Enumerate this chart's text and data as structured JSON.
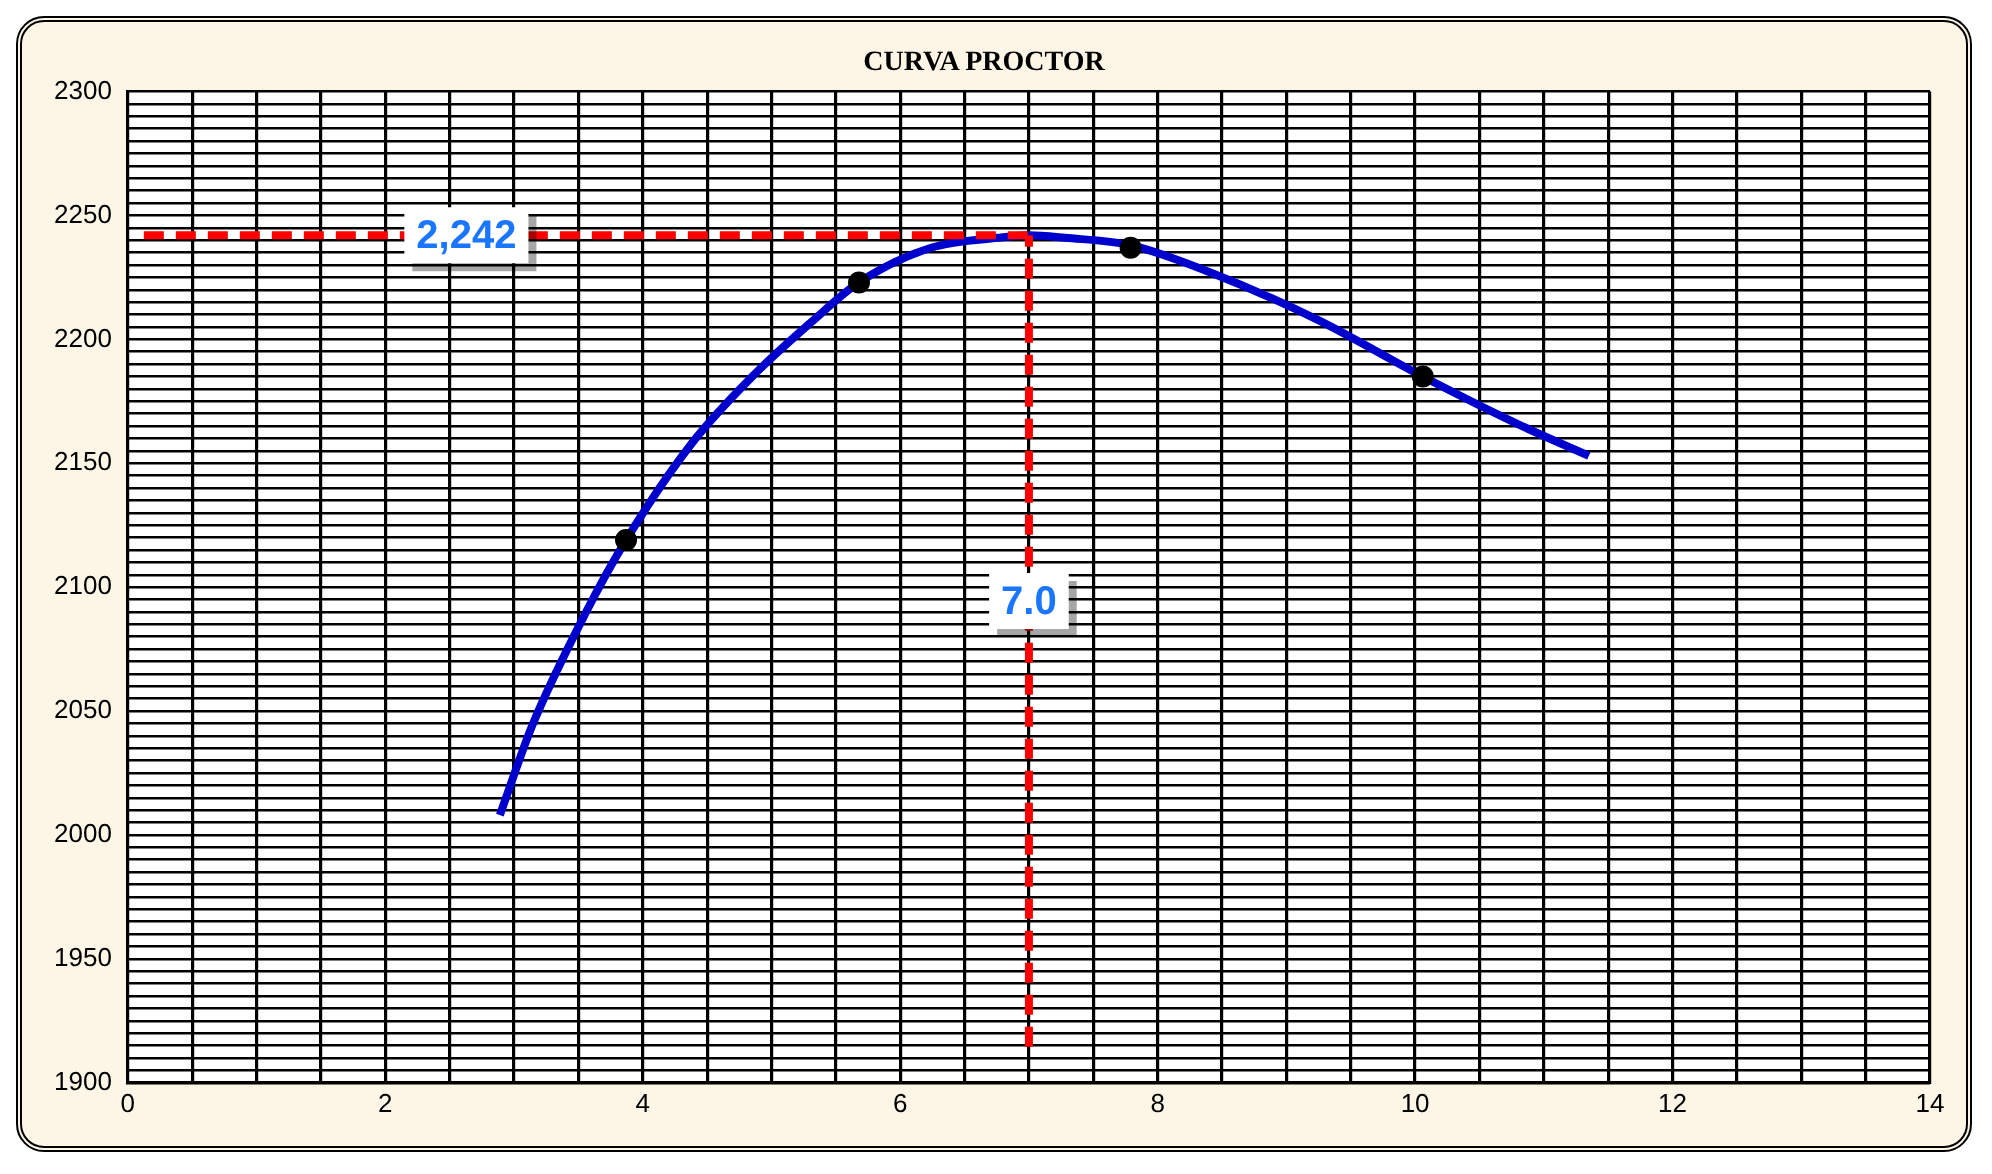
{
  "chart_data": {
    "type": "line",
    "title": "CURVA PROCTOR",
    "series": [
      {
        "type": "line",
        "color": "#0000cc",
        "marker": "none",
        "x": [
          2.89,
          3.14,
          3.56,
          3.87,
          4.38,
          4.85,
          5.31,
          5.68,
          6.24,
          6.76,
          7.0,
          7.28,
          7.79,
          8.41,
          9.24,
          10.06,
          10.79,
          11.35
        ],
        "values": [
          2008,
          2044,
          2090,
          2119,
          2158,
          2185,
          2207,
          2223,
          2237,
          2241,
          2242,
          2241,
          2238,
          2227,
          2208,
          2185,
          2166,
          2153
        ]
      },
      {
        "type": "scatter",
        "color": "#000000",
        "marker": "circle",
        "x": [
          3.87,
          5.68,
          7.79,
          10.06
        ],
        "values": [
          2119,
          2223,
          2237,
          2185
        ]
      }
    ],
    "xlim": [
      0,
      14
    ],
    "xticks": [
      0,
      {
        "value": 0.5,
        "label": null
      },
      {
        "value": 1,
        "label": null
      },
      {
        "value": 1.5,
        "label": null
      },
      2,
      {
        "value": 2.5,
        "label": null
      },
      {
        "value": 3,
        "label": null
      },
      {
        "value": 3.5,
        "label": null
      },
      4,
      {
        "value": 4.5,
        "label": null
      },
      {
        "value": 5,
        "label": null
      },
      {
        "value": 5.5,
        "label": null
      },
      6,
      {
        "value": 6.5,
        "label": null
      },
      {
        "value": 7,
        "label": null
      },
      {
        "value": 7.5,
        "label": null
      },
      8,
      {
        "value": 8.5,
        "label": null
      },
      {
        "value": 9,
        "label": null
      },
      {
        "value": 9.5,
        "label": null
      },
      10,
      {
        "value": 10.5,
        "label": null
      },
      {
        "value": 11,
        "label": null
      },
      {
        "value": 11.5,
        "label": null
      },
      12,
      {
        "value": 12.5,
        "label": null
      },
      {
        "value": 13,
        "label": null
      },
      {
        "value": 13.5,
        "label": null
      },
      14
    ],
    "ylim": [
      1900,
      2300
    ],
    "yticks": [
      1900,
      {
        "value": 1905,
        "label": null
      },
      {
        "value": 1910,
        "label": null
      },
      {
        "value": 1915,
        "label": null
      },
      {
        "value": 1920,
        "label": null
      },
      {
        "value": 1925,
        "label": null
      },
      {
        "value": 1930,
        "label": null
      },
      {
        "value": 1935,
        "label": null
      },
      {
        "value": 1940,
        "label": null
      },
      {
        "value": 1945,
        "label": null
      },
      1950,
      {
        "value": 1955,
        "label": null
      },
      {
        "value": 1960,
        "label": null
      },
      {
        "value": 1965,
        "label": null
      },
      {
        "value": 1970,
        "label": null
      },
      {
        "value": 1975,
        "label": null
      },
      {
        "value": 1980,
        "label": null
      },
      {
        "value": 1985,
        "label": null
      },
      {
        "value": 1990,
        "label": null
      },
      {
        "value": 1995,
        "label": null
      },
      2000,
      {
        "value": 2005,
        "label": null
      },
      {
        "value": 2010,
        "label": null
      },
      {
        "value": 2015,
        "label": null
      },
      {
        "value": 2020,
        "label": null
      },
      {
        "value": 2025,
        "label": null
      },
      {
        "value": 2030,
        "label": null
      },
      {
        "value": 2035,
        "label": null
      },
      {
        "value": 2040,
        "label": null
      },
      {
        "value": 2045,
        "label": null
      },
      2050,
      {
        "value": 2055,
        "label": null
      },
      {
        "value": 2060,
        "label": null
      },
      {
        "value": 2065,
        "label": null
      },
      {
        "value": 2070,
        "label": null
      },
      {
        "value": 2075,
        "label": null
      },
      {
        "value": 2080,
        "label": null
      },
      {
        "value": 2085,
        "label": null
      },
      {
        "value": 2090,
        "label": null
      },
      {
        "value": 2095,
        "label": null
      },
      2100,
      {
        "value": 2105,
        "label": null
      },
      {
        "value": 2110,
        "label": null
      },
      {
        "value": 2115,
        "label": null
      },
      {
        "value": 2120,
        "label": null
      },
      {
        "value": 2125,
        "label": null
      },
      {
        "value": 2130,
        "label": null
      },
      {
        "value": 2135,
        "label": null
      },
      {
        "value": 2140,
        "label": null
      },
      {
        "value": 2145,
        "label": null
      },
      2150,
      {
        "value": 2155,
        "label": null
      },
      {
        "value": 2160,
        "label": null
      },
      {
        "value": 2165,
        "label": null
      },
      {
        "value": 2170,
        "label": null
      },
      {
        "value": 2175,
        "label": null
      },
      {
        "value": 2180,
        "label": null
      },
      {
        "value": 2185,
        "label": null
      },
      {
        "value": 2190,
        "label": null
      },
      {
        "value": 2195,
        "label": null
      },
      2200,
      {
        "value": 2205,
        "label": null
      },
      {
        "value": 2210,
        "label": null
      },
      {
        "value": 2215,
        "label": null
      },
      {
        "value": 2220,
        "label": null
      },
      {
        "value": 2225,
        "label": null
      },
      {
        "value": 2230,
        "label": null
      },
      {
        "value": 2235,
        "label": null
      },
      {
        "value": 2240,
        "label": null
      },
      {
        "value": 2245,
        "label": null
      },
      2250,
      {
        "value": 2255,
        "label": null
      },
      {
        "value": 2260,
        "label": null
      },
      {
        "value": 2265,
        "label": null
      },
      {
        "value": 2270,
        "label": null
      },
      {
        "value": 2275,
        "label": null
      },
      {
        "value": 2280,
        "label": null
      },
      {
        "value": 2285,
        "label": null
      },
      {
        "value": 2290,
        "label": null
      },
      {
        "value": 2295,
        "label": null
      },
      2300
    ],
    "grid": true,
    "legend": false,
    "ref_lines": [
      {
        "axis": "y",
        "value": 2242,
        "label": "2,242",
        "color": "#ff0000",
        "line_style": "dashed"
      },
      {
        "axis": "x",
        "value": 7.0,
        "label": "7.0",
        "color": "#ff0000",
        "line_style": "dashed"
      }
    ]
  }
}
